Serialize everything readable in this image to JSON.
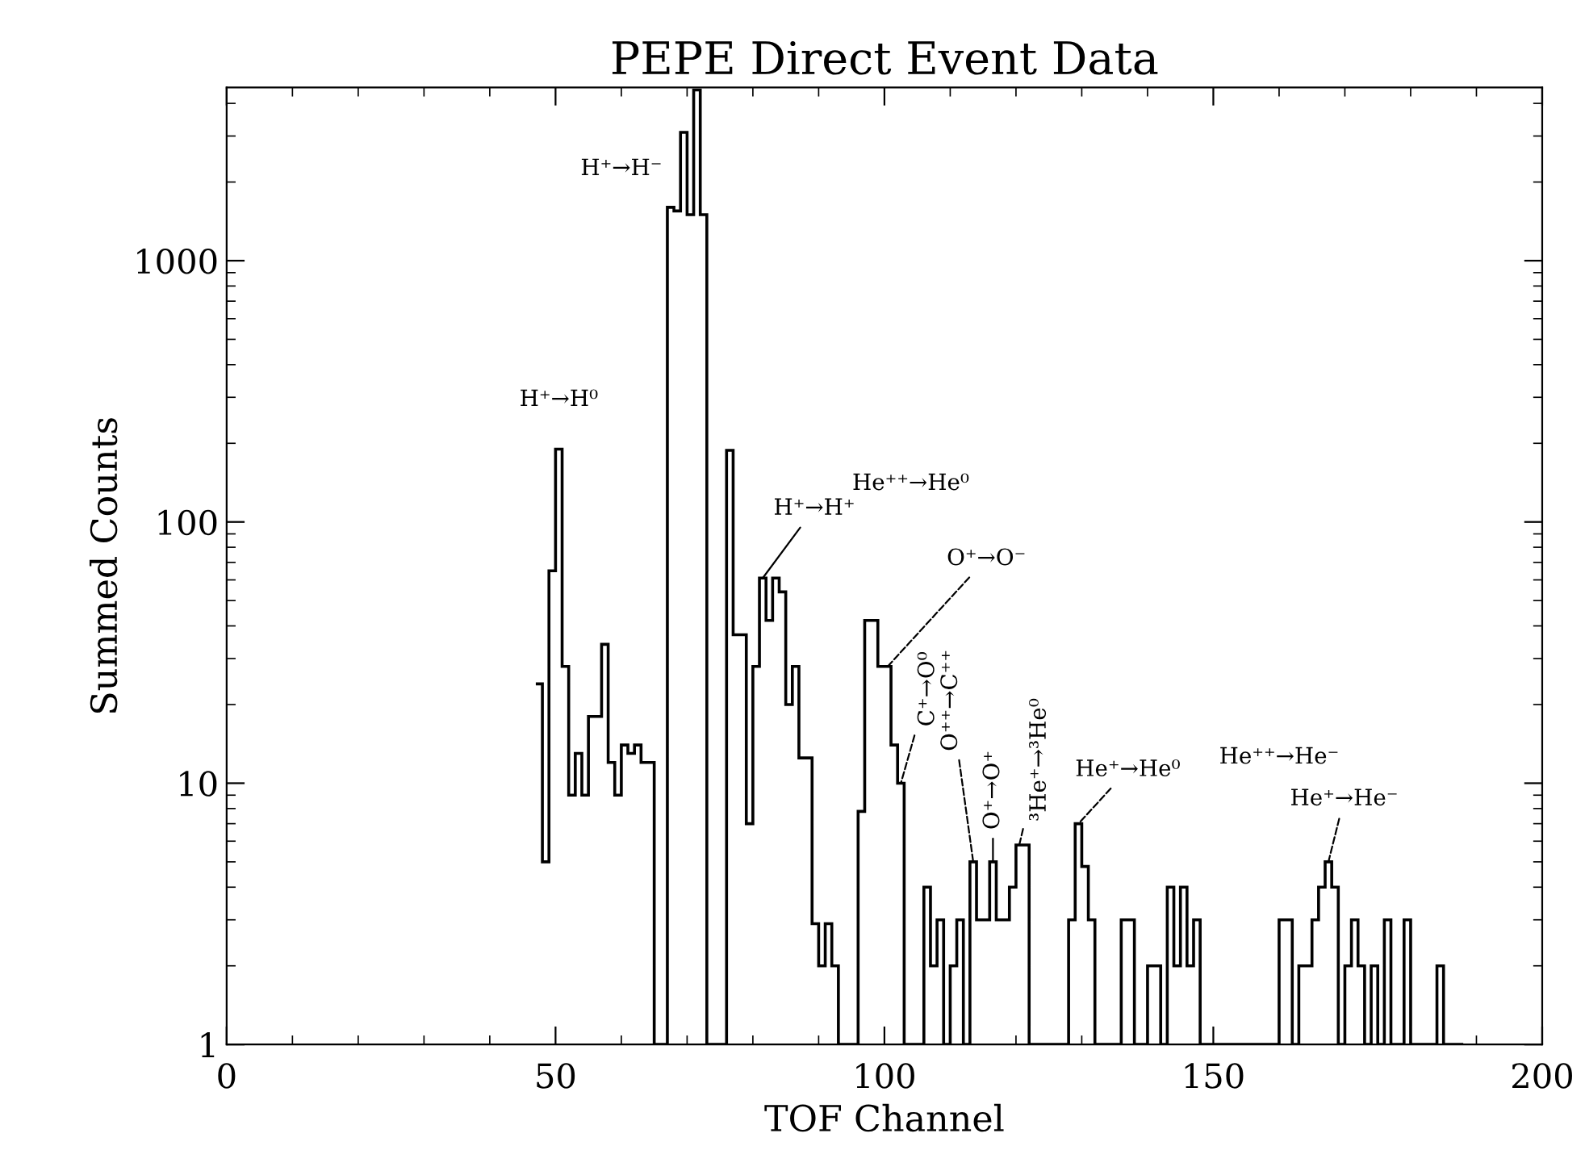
{
  "chart_data": {
    "type": "histogram",
    "title": "PEPE Direct Event Data",
    "xlabel": "TOF Channel",
    "ylabel": "Summed Counts",
    "log": "y",
    "grid": false,
    "legend": false,
    "color": "#000000",
    "xlim": [
      0,
      200
    ],
    "xticks": [
      0,
      50,
      100,
      150,
      200
    ],
    "ylim": [
      1,
      4600
    ],
    "yticks": [
      1,
      10,
      100,
      1000
    ],
    "bins": [
      47,
      48,
      49,
      50,
      51,
      52,
      53,
      54,
      55,
      56,
      57,
      58,
      59,
      60,
      61,
      62,
      63,
      64,
      65,
      66,
      67,
      68,
      69,
      70,
      71,
      72,
      73,
      74,
      75,
      76,
      77,
      78,
      79,
      80,
      81,
      82,
      83,
      84,
      85,
      86,
      87,
      88,
      89,
      90,
      91,
      92,
      93,
      94,
      95,
      96,
      97,
      98,
      99,
      100,
      101,
      102,
      103,
      104,
      105,
      106,
      107,
      108,
      109,
      110,
      111,
      112,
      113,
      114,
      115,
      116,
      117,
      118,
      119,
      120,
      121,
      122,
      123,
      124,
      125,
      126,
      127,
      128,
      129,
      130,
      131,
      132,
      133,
      134,
      135,
      136,
      137,
      138,
      139,
      140,
      141,
      142,
      143,
      144,
      145,
      146,
      147,
      148,
      149,
      150,
      151,
      152,
      153,
      154,
      155,
      156,
      157,
      158,
      159,
      160,
      161,
      162,
      163,
      164,
      165,
      166,
      167,
      168,
      169,
      170,
      171,
      172,
      173,
      174,
      175,
      176,
      177,
      178,
      179,
      180,
      181,
      182,
      183,
      184,
      185,
      186,
      187,
      188
    ],
    "values": [
      24,
      5,
      65,
      190,
      28,
      9,
      13,
      9,
      18,
      18,
      34,
      12,
      9,
      14,
      13,
      14,
      12,
      12,
      1,
      1,
      1600,
      1550,
      3100,
      1500,
      4500,
      1500,
      1,
      1,
      1,
      188,
      37,
      37,
      7,
      28,
      61,
      42,
      61,
      54,
      20,
      28,
      12.5,
      12.5,
      2.9,
      2,
      2.9,
      2,
      1,
      1,
      1,
      7.8,
      42,
      42,
      28,
      28,
      14,
      10,
      1,
      1,
      1,
      4,
      2,
      3,
      1,
      2,
      3,
      1,
      5,
      3,
      3,
      5,
      3,
      3,
      4,
      5.8,
      5.8,
      1,
      1,
      1,
      1,
      1,
      1,
      3,
      7,
      4.8,
      3,
      1,
      1,
      1,
      1,
      3,
      3,
      1,
      1,
      2,
      2,
      1,
      4,
      2,
      4,
      2,
      3,
      1,
      1,
      1,
      1,
      1,
      1,
      1,
      1,
      1,
      1,
      1,
      1,
      3,
      3,
      1,
      2,
      2,
      3,
      4,
      5,
      4,
      1,
      2,
      3,
      2,
      1,
      2,
      1,
      3,
      1,
      1,
      3,
      1,
      1,
      1,
      1,
      2,
      1,
      1,
      1
    ],
    "annotations": [
      "H⁺→H⁻",
      {
        "text": "H⁺→H⁰",
        "x": 50.5,
        "y": 190
      },
      "He⁺⁺→He⁰",
      {
        "text": "H⁺→H⁺",
        "x": 81.5,
        "y": 61
      },
      {
        "text": "O⁺→O⁻",
        "x": 100.5,
        "y": 28
      },
      {
        "text": "C⁺→O⁰",
        "x": 102.5,
        "y": 10
      },
      {
        "text": "O⁺⁺→C⁺⁺",
        "x": 113.5,
        "y": 5
      },
      {
        "text": "O⁺→O⁺",
        "x": 116.5,
        "y": 5
      },
      {
        "text": "³He⁺→³He⁰",
        "x": 120.5,
        "y": 5.8
      },
      {
        "text": "He⁺→He⁰",
        "x": 129.5,
        "y": 7
      },
      "He⁺⁺→He⁻",
      {
        "text": "He⁺→He⁻",
        "x": 167.5,
        "y": 5
      }
    ]
  }
}
